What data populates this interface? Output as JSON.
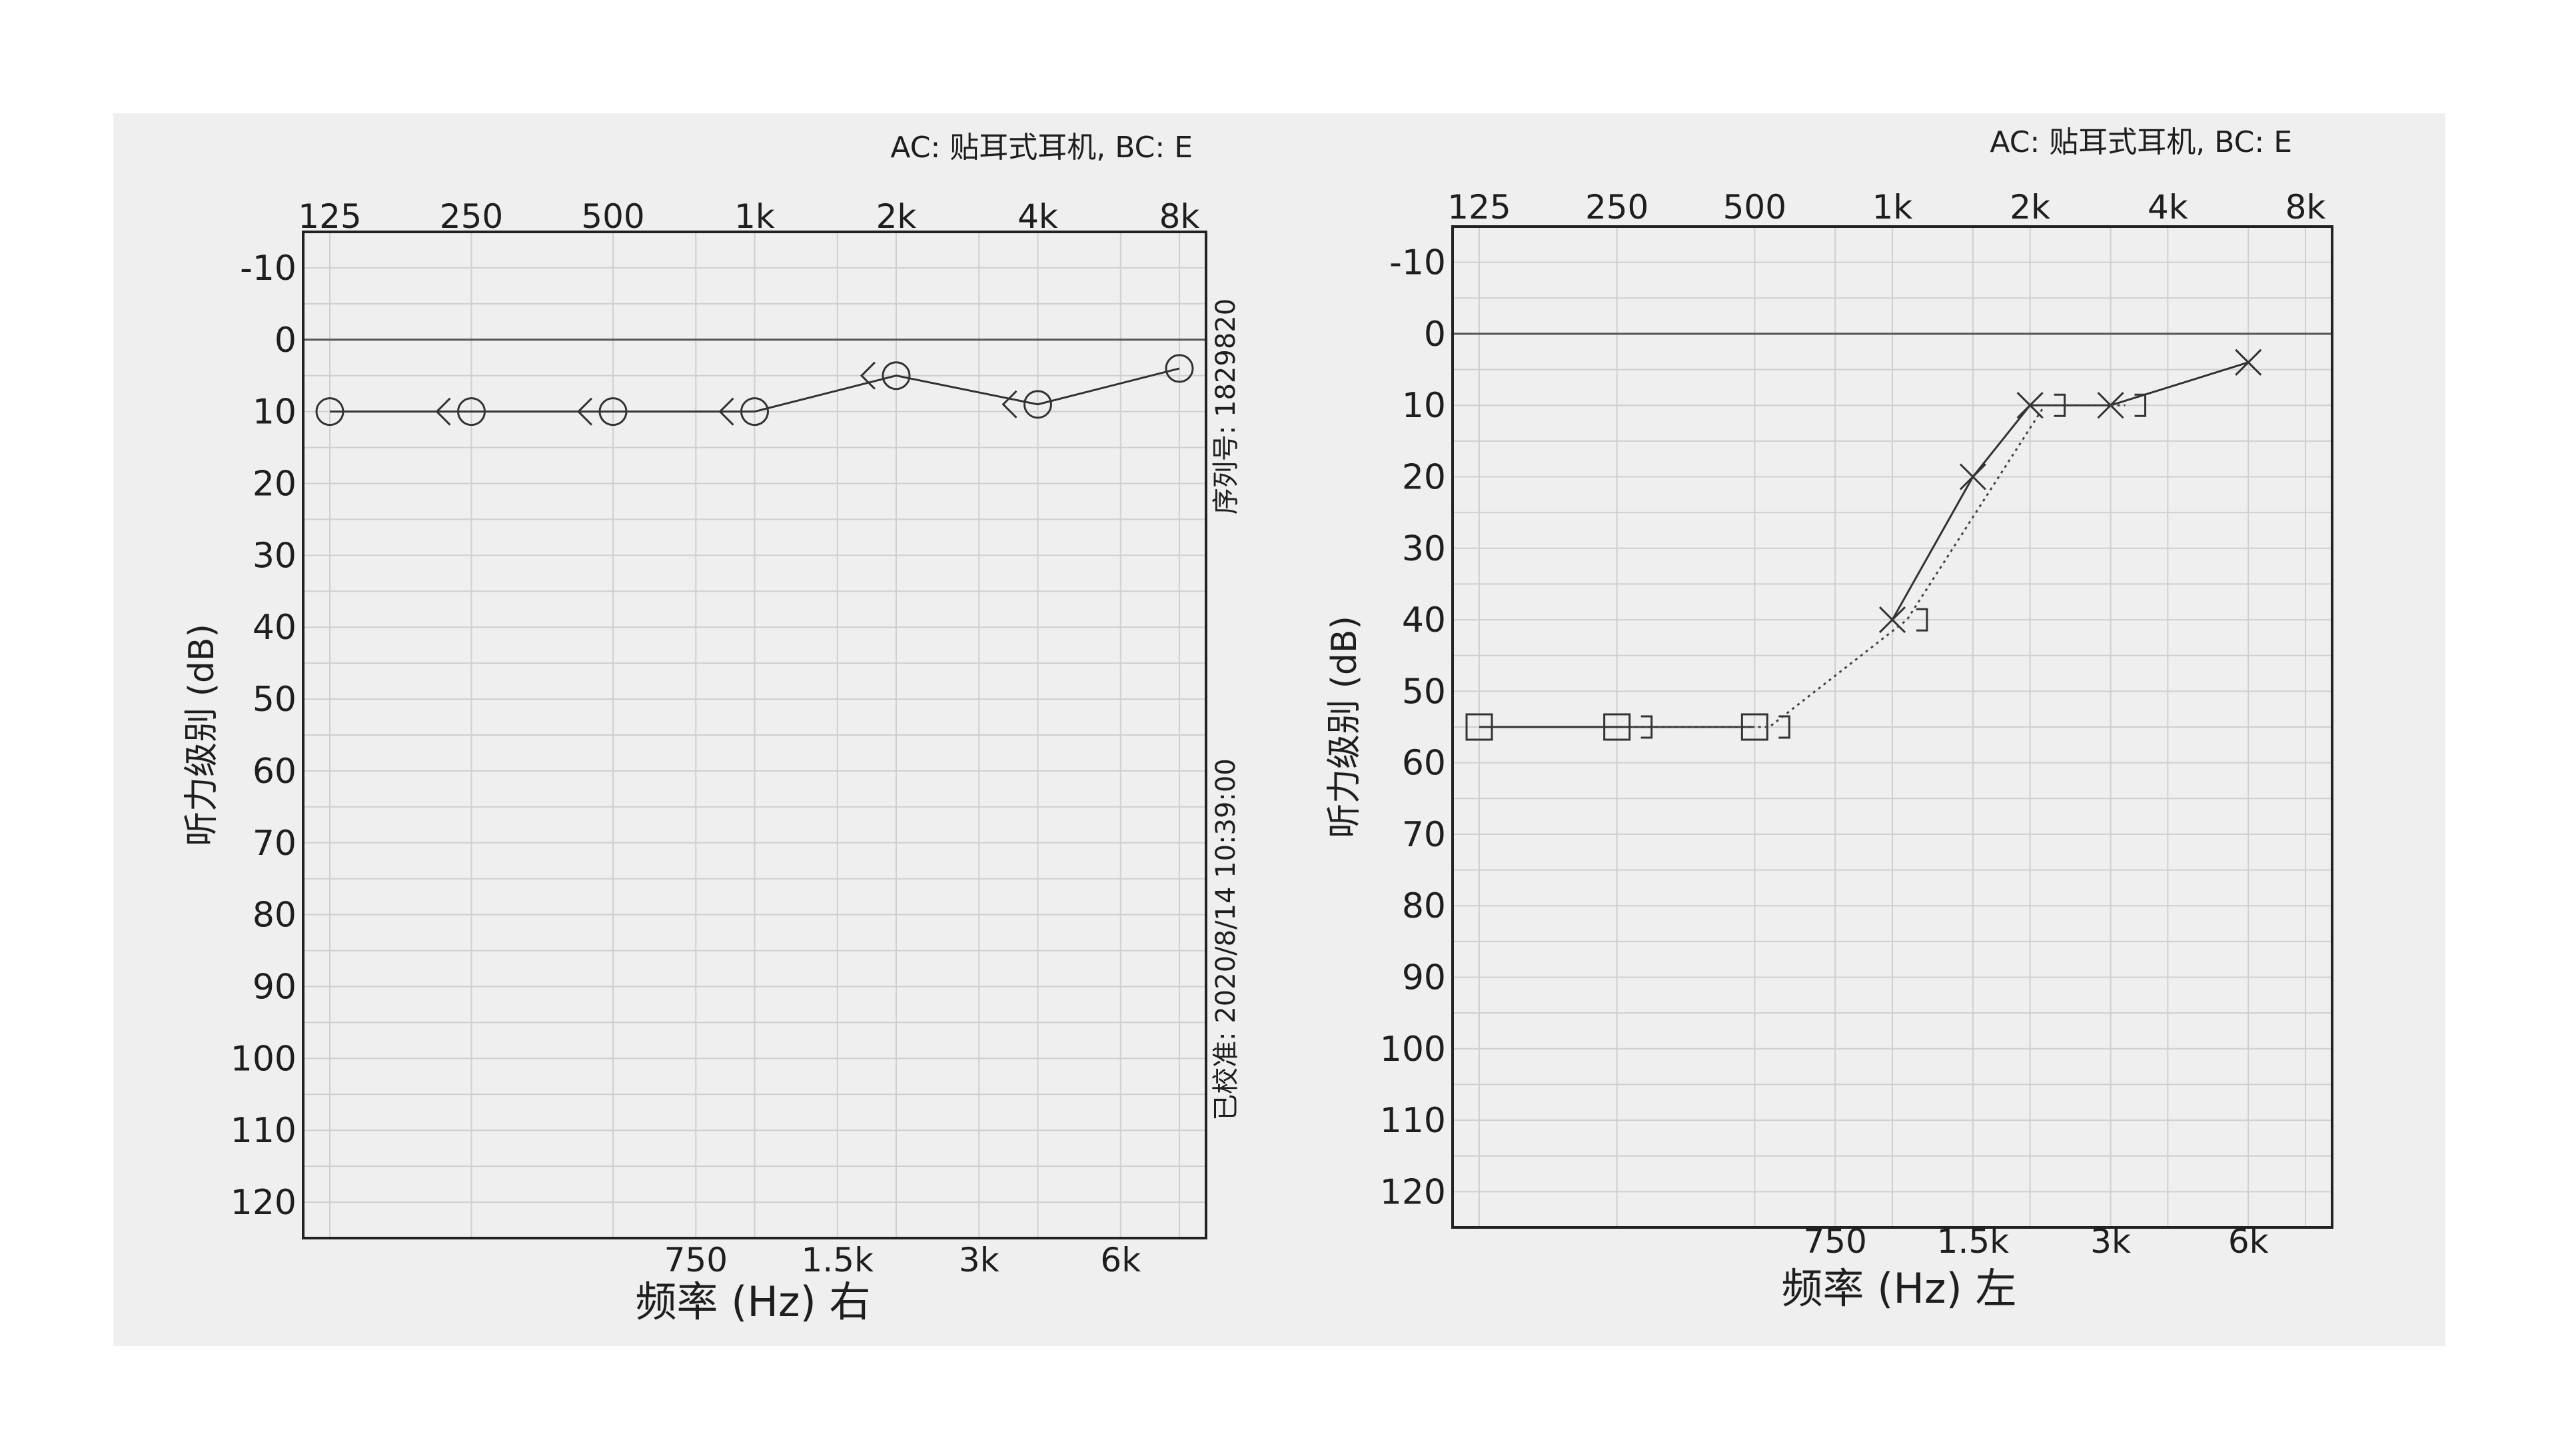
{
  "chart_data": [
    {
      "type": "line",
      "header": "AC: 贴耳式耳机, BC: E",
      "top_ticks": [
        "125",
        "250",
        "500",
        "1k",
        "2k",
        "4k",
        "8k"
      ],
      "bottom_ticks": [
        "750",
        "1.5k",
        "3k",
        "6k"
      ],
      "ylabel": "听力级别 (dB)",
      "xlabel": "频率 (Hz) 右",
      "ylim": [
        -15,
        125
      ],
      "y_ticks": [
        -10,
        0,
        10,
        20,
        30,
        40,
        50,
        60,
        70,
        80,
        90,
        100,
        110,
        120
      ],
      "side_text_top": "序列号: 1829820",
      "side_text_bottom": "已校准: 2020/8/14 10:39:00",
      "series": [
        {
          "marker": "circle",
          "x": [
            "125",
            "250",
            "500",
            "1k",
            "2k",
            "4k",
            "8k"
          ],
          "values": [
            10,
            10,
            10,
            10,
            5,
            9,
            4
          ]
        },
        {
          "marker": "bone-right",
          "x": [
            "250",
            "500",
            "1k",
            "2k",
            "4k"
          ],
          "values": [
            10,
            10,
            10,
            5,
            9
          ]
        }
      ]
    },
    {
      "type": "line",
      "header": "AC: 贴耳式耳机, BC: E",
      "top_ticks": [
        "125",
        "250",
        "500",
        "1k",
        "2k",
        "4k",
        "8k"
      ],
      "bottom_ticks": [
        "750",
        "1.5k",
        "3k",
        "6k"
      ],
      "ylabel": "听力级别 (dB)",
      "xlabel": "频率 (Hz) 左",
      "ylim": [
        -15,
        125
      ],
      "y_ticks": [
        -10,
        0,
        10,
        20,
        30,
        40,
        50,
        60,
        70,
        80,
        90,
        100,
        110,
        120
      ],
      "series": [
        {
          "marker": "square",
          "x": [
            "125",
            "250",
            "500"
          ],
          "values": [
            55,
            55,
            55
          ]
        },
        {
          "marker": "cross",
          "x": [
            "1k",
            "1.5k",
            "2k",
            "3k",
            "6k"
          ],
          "values": [
            40,
            20,
            10,
            10,
            4
          ]
        },
        {
          "marker": "bone-left",
          "x": [
            "250",
            "500",
            "1k",
            "2k",
            "3k"
          ],
          "values": [
            55,
            55,
            40,
            10,
            10
          ]
        }
      ]
    }
  ]
}
